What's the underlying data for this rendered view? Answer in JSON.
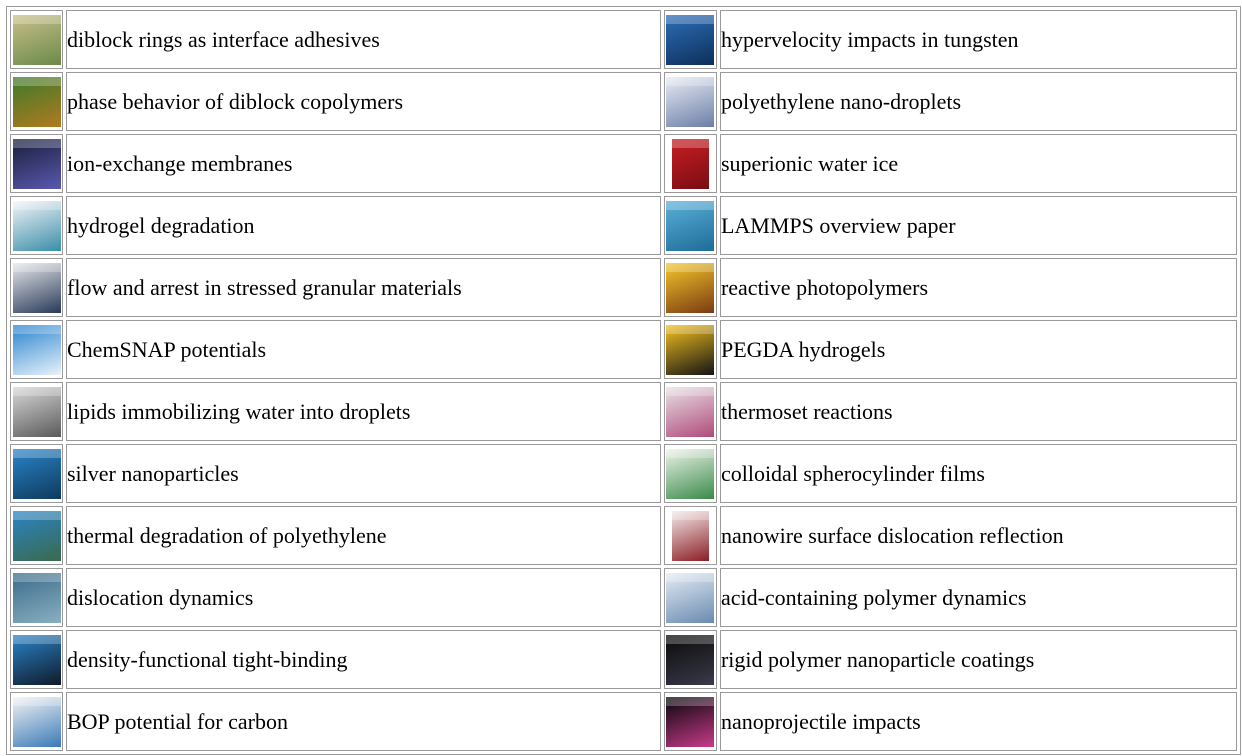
{
  "rows": [
    {
      "left": {
        "label": "diblock rings as interface adhesives",
        "cover": "cover-thumbnail",
        "colors": [
          "#c9c08a",
          "#6a8a4a"
        ]
      },
      "right": {
        "label": "hypervelocity impacts in tungsten",
        "cover": "cover-thumbnail",
        "colors": [
          "#2d6fb8",
          "#0d2f5a"
        ]
      }
    },
    {
      "left": {
        "label": "phase behavior of diblock copolymers",
        "cover": "cover-thumbnail",
        "colors": [
          "#3d7a2a",
          "#b07a20"
        ]
      },
      "right": {
        "label": "polyethylene nano-droplets",
        "cover": "cover-thumbnail",
        "colors": [
          "#e8ecf4",
          "#6c7ea8"
        ]
      }
    },
    {
      "left": {
        "label": "ion-exchange membranes",
        "cover": "cover-thumbnail",
        "colors": [
          "#1a1e3a",
          "#5a58b0"
        ]
      },
      "right": {
        "label": "superionic water ice",
        "cover": "cover-thumbnail",
        "colors": [
          "#c81e24",
          "#7a0d12"
        ]
      }
    },
    {
      "left": {
        "label": "hydrogel degradation",
        "cover": "cover-thumbnail",
        "colors": [
          "#f4f4f8",
          "#3a8ea8"
        ]
      },
      "right": {
        "label": "LAMMPS overview paper",
        "cover": "cover-thumbnail",
        "colors": [
          "#5ab0d8",
          "#1e6c98"
        ]
      }
    },
    {
      "left": {
        "label": "flow and arrest in stressed granular materials",
        "cover": "cover-thumbnail",
        "colors": [
          "#e8e8ec",
          "#283a58"
        ]
      },
      "right": {
        "label": "reactive photopolymers",
        "cover": "cover-thumbnail",
        "colors": [
          "#f4c82a",
          "#7a3a12"
        ]
      }
    },
    {
      "left": {
        "label": "ChemSNAP potentials",
        "cover": "cover-thumbnail",
        "colors": [
          "#2a84d0",
          "#e8f2fa"
        ]
      },
      "right": {
        "label": "PEGDA hydrogels",
        "cover": "cover-thumbnail",
        "colors": [
          "#f4c020",
          "#141414"
        ]
      }
    },
    {
      "left": {
        "label": "lipids immobilizing water into droplets",
        "cover": "cover-thumbnail",
        "colors": [
          "#d8d8d8",
          "#5a5a5a"
        ]
      },
      "right": {
        "label": "thermoset reactions",
        "cover": "cover-thumbnail",
        "colors": [
          "#e8e2e6",
          "#b04a7a"
        ]
      }
    },
    {
      "left": {
        "label": "silver nanoparticles",
        "cover": "cover-thumbnail",
        "colors": [
          "#2a84c8",
          "#0e3a5e"
        ]
      },
      "right": {
        "label": "colloidal spherocylinder films",
        "cover": "cover-thumbnail",
        "colors": [
          "#eef4ea",
          "#3a8a4a"
        ]
      }
    },
    {
      "left": {
        "label": "thermal degradation of polyethylene",
        "cover": "cover-thumbnail",
        "colors": [
          "#2a84c8",
          "#3a6a4a"
        ]
      },
      "right": {
        "label": "nanowire surface dislocation reflection",
        "cover": "cover-thumbnail",
        "colors": [
          "#f4ecec",
          "#8a1e24"
        ]
      }
    },
    {
      "left": {
        "label": "dislocation dynamics",
        "cover": "cover-thumbnail",
        "colors": [
          "#3a6a8a",
          "#8ab0c0"
        ]
      },
      "right": {
        "label": "acid-containing polymer dynamics",
        "cover": "cover-thumbnail",
        "colors": [
          "#e4ecf4",
          "#6a8ab0"
        ]
      }
    },
    {
      "left": {
        "label": "density-functional tight-binding",
        "cover": "cover-thumbnail",
        "colors": [
          "#2a84c8",
          "#101a2a"
        ]
      },
      "right": {
        "label": "rigid polymer nanoparticle coatings",
        "cover": "cover-thumbnail",
        "colors": [
          "#0a0a0a",
          "#3a3a4a"
        ]
      }
    },
    {
      "left": {
        "label": "BOP potential for carbon",
        "cover": "cover-thumbnail",
        "colors": [
          "#f4f4f4",
          "#3a7ab8"
        ]
      },
      "right": {
        "label": "nanoprojectile impacts",
        "cover": "cover-thumbnail",
        "colors": [
          "#06060a",
          "#c83a8a"
        ]
      }
    }
  ]
}
